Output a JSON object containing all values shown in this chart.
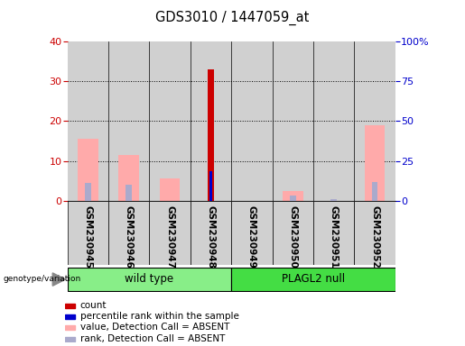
{
  "title": "GDS3010 / 1447059_at",
  "samples": [
    "GSM230945",
    "GSM230946",
    "GSM230947",
    "GSM230948",
    "GSM230949",
    "GSM230950",
    "GSM230951",
    "GSM230952"
  ],
  "count_values": [
    null,
    null,
    null,
    33,
    null,
    null,
    null,
    null
  ],
  "percentile_rank_values": [
    null,
    null,
    null,
    18.5,
    null,
    null,
    null,
    null
  ],
  "absent_value": [
    15.5,
    11.5,
    5.5,
    null,
    null,
    2.5,
    null,
    19.0
  ],
  "absent_rank": [
    11.0,
    10.0,
    null,
    null,
    null,
    3.5,
    0.8,
    11.5
  ],
  "ylim_left": [
    0,
    40
  ],
  "ylim_right": [
    0,
    100
  ],
  "yticks_left": [
    0,
    10,
    20,
    30,
    40
  ],
  "yticks_right": [
    0,
    25,
    50,
    75,
    100
  ],
  "ytick_labels_right": [
    "0",
    "25",
    "50",
    "75",
    "100%"
  ],
  "left_axis_color": "#cc0000",
  "right_axis_color": "#0000cc",
  "count_color": "#cc0000",
  "percentile_color": "#0000cc",
  "absent_value_color": "#ffaaaa",
  "absent_rank_color": "#aaaacc",
  "group_wt_color": "#88ee88",
  "group_null_color": "#44dd44",
  "background_gray": "#d0d0d0",
  "legend_items": [
    {
      "label": "count",
      "color": "#cc0000"
    },
    {
      "label": "percentile rank within the sample",
      "color": "#0000cc"
    },
    {
      "label": "value, Detection Call = ABSENT",
      "color": "#ffaaaa"
    },
    {
      "label": "rank, Detection Call = ABSENT",
      "color": "#aaaacc"
    }
  ]
}
